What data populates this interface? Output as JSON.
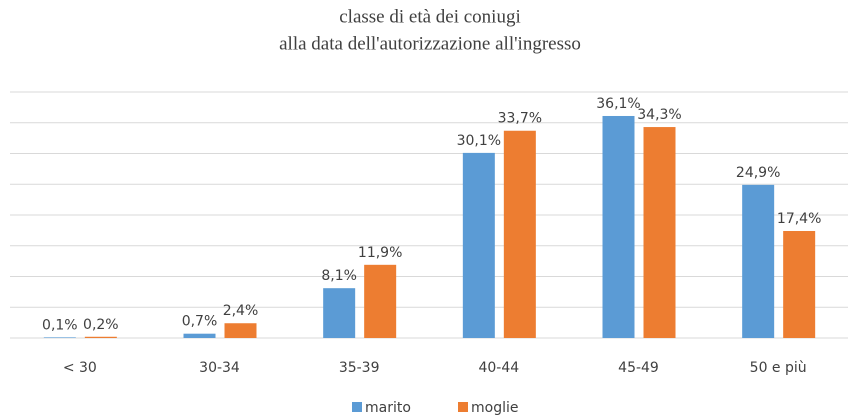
{
  "chart_data": {
    "type": "bar",
    "title": "classe di età dei coniugi",
    "subtitle": "alla data dell'autorizzazione all'ingresso",
    "categories": [
      "< 30",
      "30-34",
      "35-39",
      "40-44",
      "45-49",
      "50 e più"
    ],
    "series": [
      {
        "name": "marito",
        "color": "#5b9bd5",
        "values": [
          0.1,
          0.7,
          8.1,
          30.1,
          36.1,
          24.9
        ],
        "value_labels": [
          "0,1%",
          "0,7%",
          "8,1%",
          "30,1%",
          "36,1%",
          "24,9%"
        ]
      },
      {
        "name": "moglie",
        "color": "#ed7d31",
        "values": [
          0.2,
          2.4,
          11.9,
          33.7,
          34.3,
          17.4
        ],
        "value_labels": [
          "0,2%",
          "2,4%",
          "11,9%",
          "33,7%",
          "34,3%",
          "17,4%"
        ]
      }
    ],
    "ylim": [
      0,
      40
    ],
    "yticks": [
      0,
      5,
      10,
      15,
      20,
      25,
      30,
      35,
      40
    ],
    "grid": true,
    "legend": "bottom"
  }
}
